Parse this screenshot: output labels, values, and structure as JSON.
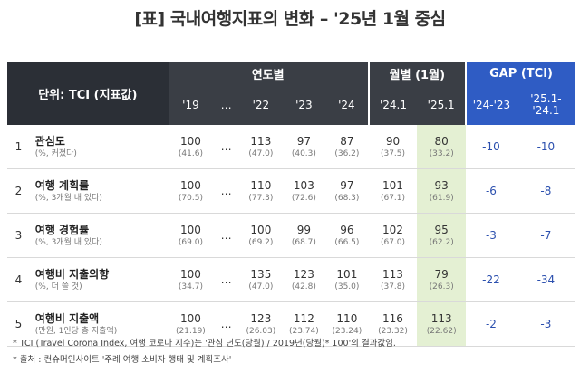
{
  "title": "[표] 국내여행지표의 변화 – '25년 1월 중심",
  "header": {
    "unit_label": "단위: TCI (지표값)",
    "group_year": "연도별",
    "group_month": "월별 (1월)",
    "group_gap": "GAP (TCI)",
    "cols": [
      "'19",
      "…",
      "'22",
      "'23",
      "'24",
      "'24.1",
      "'25.1"
    ],
    "gap_col1": "'24-'23",
    "gap_col2_line1": "'25.1-",
    "gap_col2_line2": "'24.1"
  },
  "rows": [
    {
      "no": "1",
      "name": "관심도",
      "desc": "(%, 커졌다)",
      "values": [
        {
          "v": "100",
          "s": "(41.6)"
        },
        {
          "v": "…",
          "s": ""
        },
        {
          "v": "113",
          "s": "(47.0)"
        },
        {
          "v": "97",
          "s": "(40.3)"
        },
        {
          "v": "87",
          "s": "(36.2)"
        },
        {
          "v": "90",
          "s": "(37.5)"
        },
        {
          "v": "80",
          "s": "(33.2)"
        }
      ],
      "gap1": "-10",
      "gap2": "-10"
    },
    {
      "no": "2",
      "name": "여행 계획률",
      "desc": "(%, 3개월 내 있다)",
      "values": [
        {
          "v": "100",
          "s": "(70.5)"
        },
        {
          "v": "…",
          "s": ""
        },
        {
          "v": "110",
          "s": "(77.3)"
        },
        {
          "v": "103",
          "s": "(72.6)"
        },
        {
          "v": "97",
          "s": "(68.3)"
        },
        {
          "v": "101",
          "s": "(67.1)"
        },
        {
          "v": "93",
          "s": "(61.9)"
        }
      ],
      "gap1": "-6",
      "gap2": "-8"
    },
    {
      "no": "3",
      "name": "여행 경험률",
      "desc": "(%, 3개월 내 있다)",
      "values": [
        {
          "v": "100",
          "s": "(69.0)"
        },
        {
          "v": "…",
          "s": ""
        },
        {
          "v": "100",
          "s": "(69.2)"
        },
        {
          "v": "99",
          "s": "(68.7)"
        },
        {
          "v": "96",
          "s": "(66.5)"
        },
        {
          "v": "102",
          "s": "(67.0)"
        },
        {
          "v": "95",
          "s": "(62.2)"
        }
      ],
      "gap1": "-3",
      "gap2": "-7"
    },
    {
      "no": "4",
      "name": "여행비 지출의향",
      "desc": "(%, 더 쓸 것)",
      "values": [
        {
          "v": "100",
          "s": "(34.7)"
        },
        {
          "v": "…",
          "s": ""
        },
        {
          "v": "135",
          "s": "(47.0)"
        },
        {
          "v": "123",
          "s": "(42.8)"
        },
        {
          "v": "101",
          "s": "(35.0)"
        },
        {
          "v": "113",
          "s": "(37.8)"
        },
        {
          "v": "79",
          "s": "(26.3)"
        }
      ],
      "gap1": "-22",
      "gap2": "-34"
    },
    {
      "no": "5",
      "name": "여행비 지출액",
      "desc": "(만원, 1인당 총 지출액)",
      "values": [
        {
          "v": "100",
          "s": "(21.19)"
        },
        {
          "v": "…",
          "s": ""
        },
        {
          "v": "123",
          "s": "(26.03)"
        },
        {
          "v": "112",
          "s": "(23.74)"
        },
        {
          "v": "110",
          "s": "(23.24)"
        },
        {
          "v": "116",
          "s": "(23.32)"
        },
        {
          "v": "113",
          "s": "(22.62)"
        }
      ],
      "gap1": "-2",
      "gap2": "-3"
    }
  ],
  "footnote1": "* TCI (Travel Corona Index, 여행 코로나 지수)는 '관심 년도(당월) / 2019년(당월)* 100'의 결과값임.",
  "footnote2": "* 출처 : 컨슈머인사이트 '주례 여행 소비자 행태 및 계획조사'",
  "colors": {
    "header_dark": "#2b2f36",
    "header_gap": "#2f5cc4",
    "highlight": "#e4f0d3",
    "gap_text": "#2b4fae"
  }
}
